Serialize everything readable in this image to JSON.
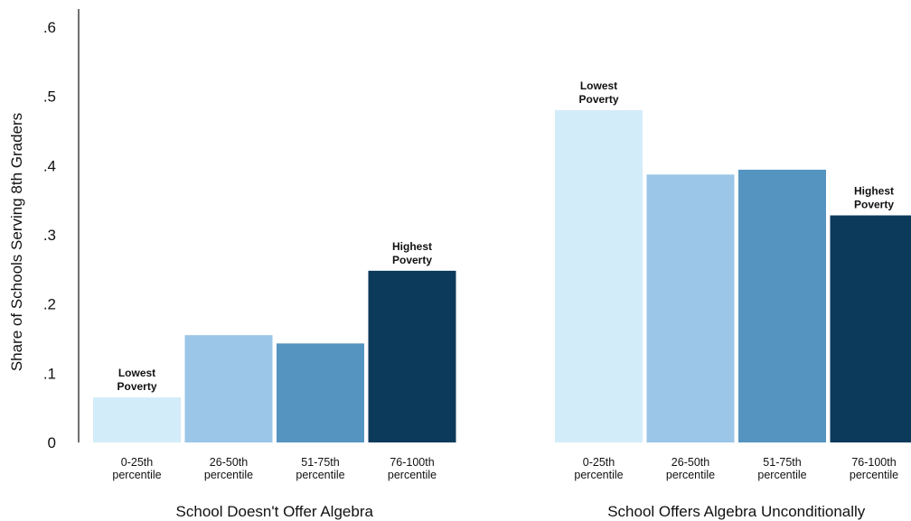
{
  "chart_data": {
    "type": "bar",
    "ylabel": "Share of Schools Serving 8th Graders",
    "ylim": [
      0,
      0.6
    ],
    "yticks": [
      {
        "value": 0,
        "label": "0"
      },
      {
        "value": 0.1,
        "label": ".1"
      },
      {
        "value": 0.2,
        "label": ".2"
      },
      {
        "value": 0.3,
        "label": ".3"
      },
      {
        "value": 0.4,
        "label": ".4"
      },
      {
        "value": 0.5,
        "label": ".5"
      },
      {
        "value": 0.6,
        "label": ".6"
      }
    ],
    "categories": [
      [
        "0-25th",
        "percentile"
      ],
      [
        "26-50th",
        "percentile"
      ],
      [
        "51-75th",
        "percentile"
      ],
      [
        "76-100th",
        "percentile"
      ]
    ],
    "colors": [
      "#d3ecf9",
      "#9bc6e7",
      "#5594c0",
      "#0b3a5a"
    ],
    "groups": [
      {
        "name": "School Doesn't Offer Algebra",
        "values": [
          0.065,
          0.155,
          0.143,
          0.248
        ],
        "annotations": [
          {
            "index": 0,
            "lines": [
              "Lowest",
              "Poverty"
            ]
          },
          {
            "index": 3,
            "lines": [
              "Highest",
              "Poverty"
            ]
          }
        ]
      },
      {
        "name": "School Offers Algebra Unconditionally",
        "values": [
          0.48,
          0.387,
          0.394,
          0.328
        ],
        "annotations": [
          {
            "index": 0,
            "lines": [
              "Lowest",
              "Poverty"
            ]
          },
          {
            "index": 3,
            "lines": [
              "Highest",
              "Poverty"
            ]
          }
        ]
      }
    ],
    "grid": false,
    "legend": "none"
  }
}
